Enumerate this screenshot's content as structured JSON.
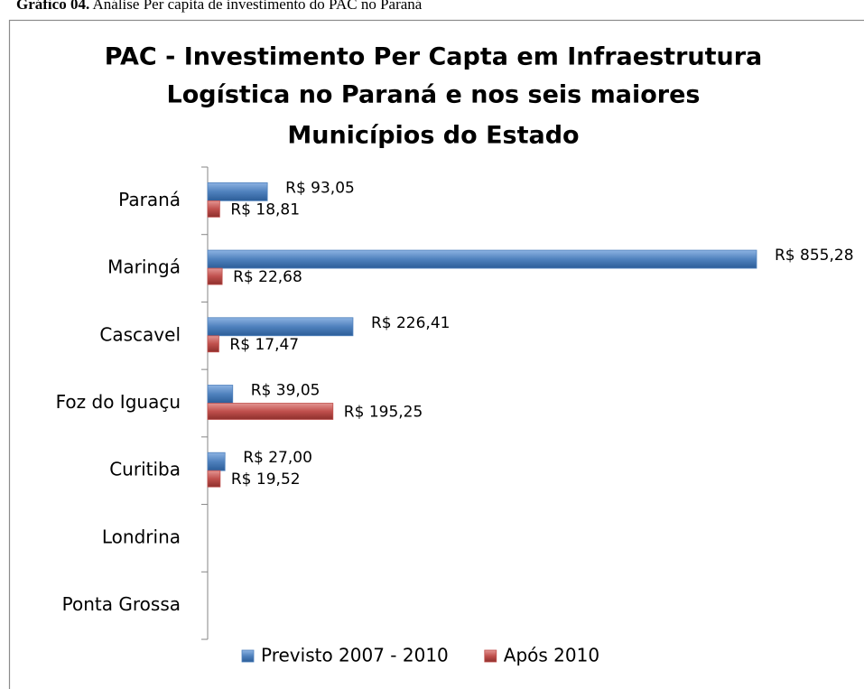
{
  "caption": {
    "label": "Gráfico 04.",
    "text": "Análise Per capita de investimento do PAC no Paraná"
  },
  "chart_data": {
    "type": "barh",
    "title": [
      "PAC - Investimento Per Capta em Infraestrutura",
      "Logística no Paraná e nos seis maiores",
      "Municípios do Estado"
    ],
    "categories": [
      "Paraná",
      "Maringá",
      "Cascavel",
      "Foz do Iguaçu",
      "Curitiba",
      "Londrina",
      "Ponta Grossa"
    ],
    "series": [
      {
        "name": "Previsto 2007 - 2010",
        "color": "#4f81bd",
        "values": [
          93.05,
          855.28,
          226.41,
          39.05,
          27.0,
          null,
          null
        ],
        "value_labels": [
          "R$ 93,05",
          "R$ 855,28",
          "R$ 226,41",
          "R$ 39,05",
          "R$ 27,00",
          null,
          null
        ]
      },
      {
        "name": "Após 2010",
        "color": "#c0504d",
        "values": [
          18.81,
          22.68,
          17.47,
          195.25,
          19.52,
          null,
          null
        ],
        "value_labels": [
          "R$ 18,81",
          "R$ 22,68",
          "R$ 17,47",
          "R$ 195,25",
          "R$ 19,52",
          null,
          null
        ]
      }
    ],
    "legend": "bottom"
  }
}
